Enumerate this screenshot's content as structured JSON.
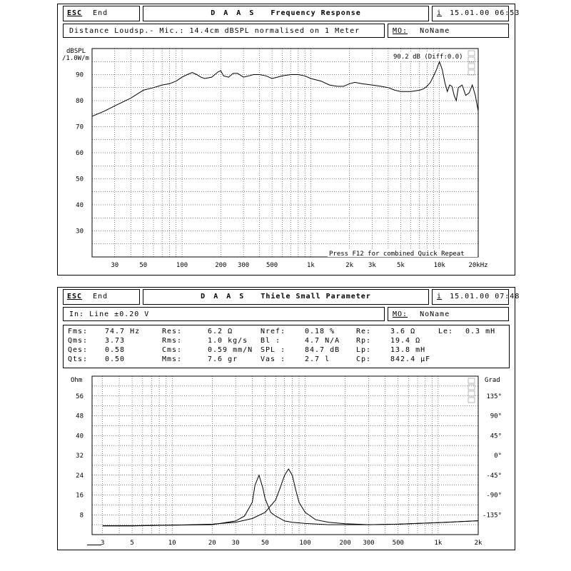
{
  "top_window": {
    "esc_label": "ESC",
    "end_label": "End",
    "title_app": "D A A S",
    "title_name": "Frequency Response",
    "info_icon_label": "i",
    "datetime": "15.01.00 06:53",
    "description": "Distance Loudsp.- Mic.: 14.4cm dBSPL normalised on 1 Meter",
    "memory_label": "MO:",
    "memory_name": "NoName",
    "y_unit_line1": "dBSPL",
    "y_unit_line2": "/1.0W/m",
    "readout": "90.2 dB (Diff:0.0)",
    "hint": "Press F12 for combined Quick Repeat",
    "y_ticks": [
      "90",
      "80",
      "70",
      "60",
      "50",
      "40",
      "30"
    ],
    "x_ticks": [
      "30",
      "50",
      "100",
      "200",
      "300",
      "500",
      "1k",
      "2k",
      "3k",
      "5k",
      "10k",
      "20kHz"
    ]
  },
  "bottom_window": {
    "esc_label": "ESC",
    "end_label": "End",
    "title_app": "D A A S",
    "title_name": "Thiele Small Parameter",
    "info_icon_label": "i",
    "datetime": "15.01.00 07:48",
    "input_line": "In: Line  ±0.20 V",
    "memory_label": "MO:",
    "memory_name": "NoName",
    "params": [
      [
        {
          "k": "Fms:",
          "v": "74.7 Hz"
        },
        {
          "k": "Res:",
          "v": "6.2 Ω"
        },
        {
          "k": "Nref:",
          "v": "0.18 %"
        },
        {
          "k": "Re:",
          "v": "3.6 Ω"
        },
        {
          "k": "Le:",
          "v": "0.3 mH"
        }
      ],
      [
        {
          "k": "Qms:",
          "v": "3.73"
        },
        {
          "k": "Rms:",
          "v": "1.0 kg/s"
        },
        {
          "k": "Bl :",
          "v": "4.7 N/A"
        },
        {
          "k": "Rp:",
          "v": "19.4 Ω"
        }
      ],
      [
        {
          "k": "Qes:",
          "v": "0.58"
        },
        {
          "k": "Cms:",
          "v": "0.59 mm/N"
        },
        {
          "k": "SPL :",
          "v": "84.7 dB"
        },
        {
          "k": "Lp:",
          "v": "13.8 mH"
        }
      ],
      [
        {
          "k": "Qts:",
          "v": "0.50"
        },
        {
          "k": "Mms:",
          "v": "7.6 gr"
        },
        {
          "k": "Vas :",
          "v": "2.7 l"
        },
        {
          "k": "Cp:",
          "v": "842.4 µF"
        }
      ]
    ],
    "y_left_unit": "Ohm",
    "y_right_unit": "Grad",
    "y_left_ticks": [
      "56",
      "48",
      "40",
      "32",
      "24",
      "16",
      "8"
    ],
    "y_right_ticks": [
      "135°",
      "90°",
      "45°",
      "0°",
      "-45°",
      "-90°",
      "-135°"
    ],
    "x_ticks": [
      "3",
      "5",
      "10",
      "20",
      "30",
      "50",
      "100",
      "200",
      "300",
      "500",
      "1k",
      "2k"
    ]
  },
  "colors": {
    "line": "#000000",
    "grid": "#000000",
    "background": "#ffffff"
  },
  "chart_data": [
    {
      "type": "line",
      "title": "Frequency Response",
      "xlabel": "",
      "ylabel": "dBSPL /1.0W/m",
      "xscale": "log",
      "xlim": [
        20,
        20000
      ],
      "ylim": [
        20,
        100
      ],
      "grid": true,
      "series": [
        {
          "x": [
            20,
            25,
            30,
            40,
            50,
            60,
            70,
            80,
            90,
            100,
            110,
            120,
            130,
            140,
            150,
            170,
            190,
            200,
            210,
            230,
            250,
            270,
            300,
            330,
            360,
            400,
            450,
            500,
            550,
            600,
            700,
            800,
            900,
            1000,
            1200,
            1400,
            1600,
            1800,
            2000,
            2200,
            2500,
            3000,
            3500,
            4000,
            4500,
            5000,
            6000,
            7000,
            7500,
            8000,
            8500,
            9000,
            9500,
            10000,
            10500,
            11000,
            11500,
            12000,
            12500,
            13000,
            13500,
            14000,
            15000,
            16000,
            17000,
            18000,
            19000,
            20000
          ],
          "y": [
            74,
            76,
            78,
            81,
            84,
            85,
            86,
            86.5,
            87.5,
            89,
            90,
            90.8,
            90,
            89,
            88.5,
            89,
            91,
            91.5,
            89.5,
            89,
            90.5,
            90.5,
            89,
            89.5,
            90,
            90,
            89.5,
            88.5,
            89,
            89.5,
            90,
            90,
            89.5,
            88.5,
            87.5,
            86,
            85.5,
            85.5,
            86.5,
            87,
            86.5,
            86,
            85.5,
            85,
            84,
            83.5,
            83.5,
            84,
            84.5,
            85.5,
            87,
            89.5,
            92,
            95,
            92,
            87,
            83.5,
            86,
            85.5,
            82,
            80,
            85,
            86,
            82,
            83,
            86,
            82,
            76
          ]
        }
      ]
    },
    {
      "type": "line",
      "title": "Thiele Small Parameter",
      "xlabel": "",
      "ylabel": "Ohm",
      "xscale": "log",
      "xlim": [
        2.5,
        2000
      ],
      "ylim": [
        0,
        64
      ],
      "y2label": "Grad",
      "y2lim": [
        -180,
        180
      ],
      "grid": true,
      "series": [
        {
          "x": [
            3,
            5,
            10,
            20,
            30,
            35,
            40,
            42,
            45,
            48,
            50,
            55,
            60,
            70,
            80,
            100,
            150,
            200,
            300,
            500,
            1000,
            2000
          ],
          "y": [
            3.6,
            3.6,
            3.8,
            4,
            5.5,
            7.5,
            13,
            20,
            24,
            19,
            14.5,
            9,
            7.5,
            5.5,
            5,
            4.5,
            4,
            4,
            4,
            4.2,
            4.8,
            5.6
          ]
        },
        {
          "x": [
            3,
            5,
            10,
            20,
            30,
            40,
            50,
            60,
            65,
            70,
            75,
            80,
            85,
            90,
            100,
            120,
            150,
            200,
            300,
            500,
            1000,
            2000
          ],
          "y": [
            3.5,
            3.5,
            3.8,
            4.2,
            5,
            6.5,
            9,
            14,
            19,
            24,
            26.5,
            24,
            18,
            13,
            9,
            6,
            5,
            4.4,
            4,
            4.2,
            4.8,
            5.6
          ]
        }
      ]
    }
  ]
}
